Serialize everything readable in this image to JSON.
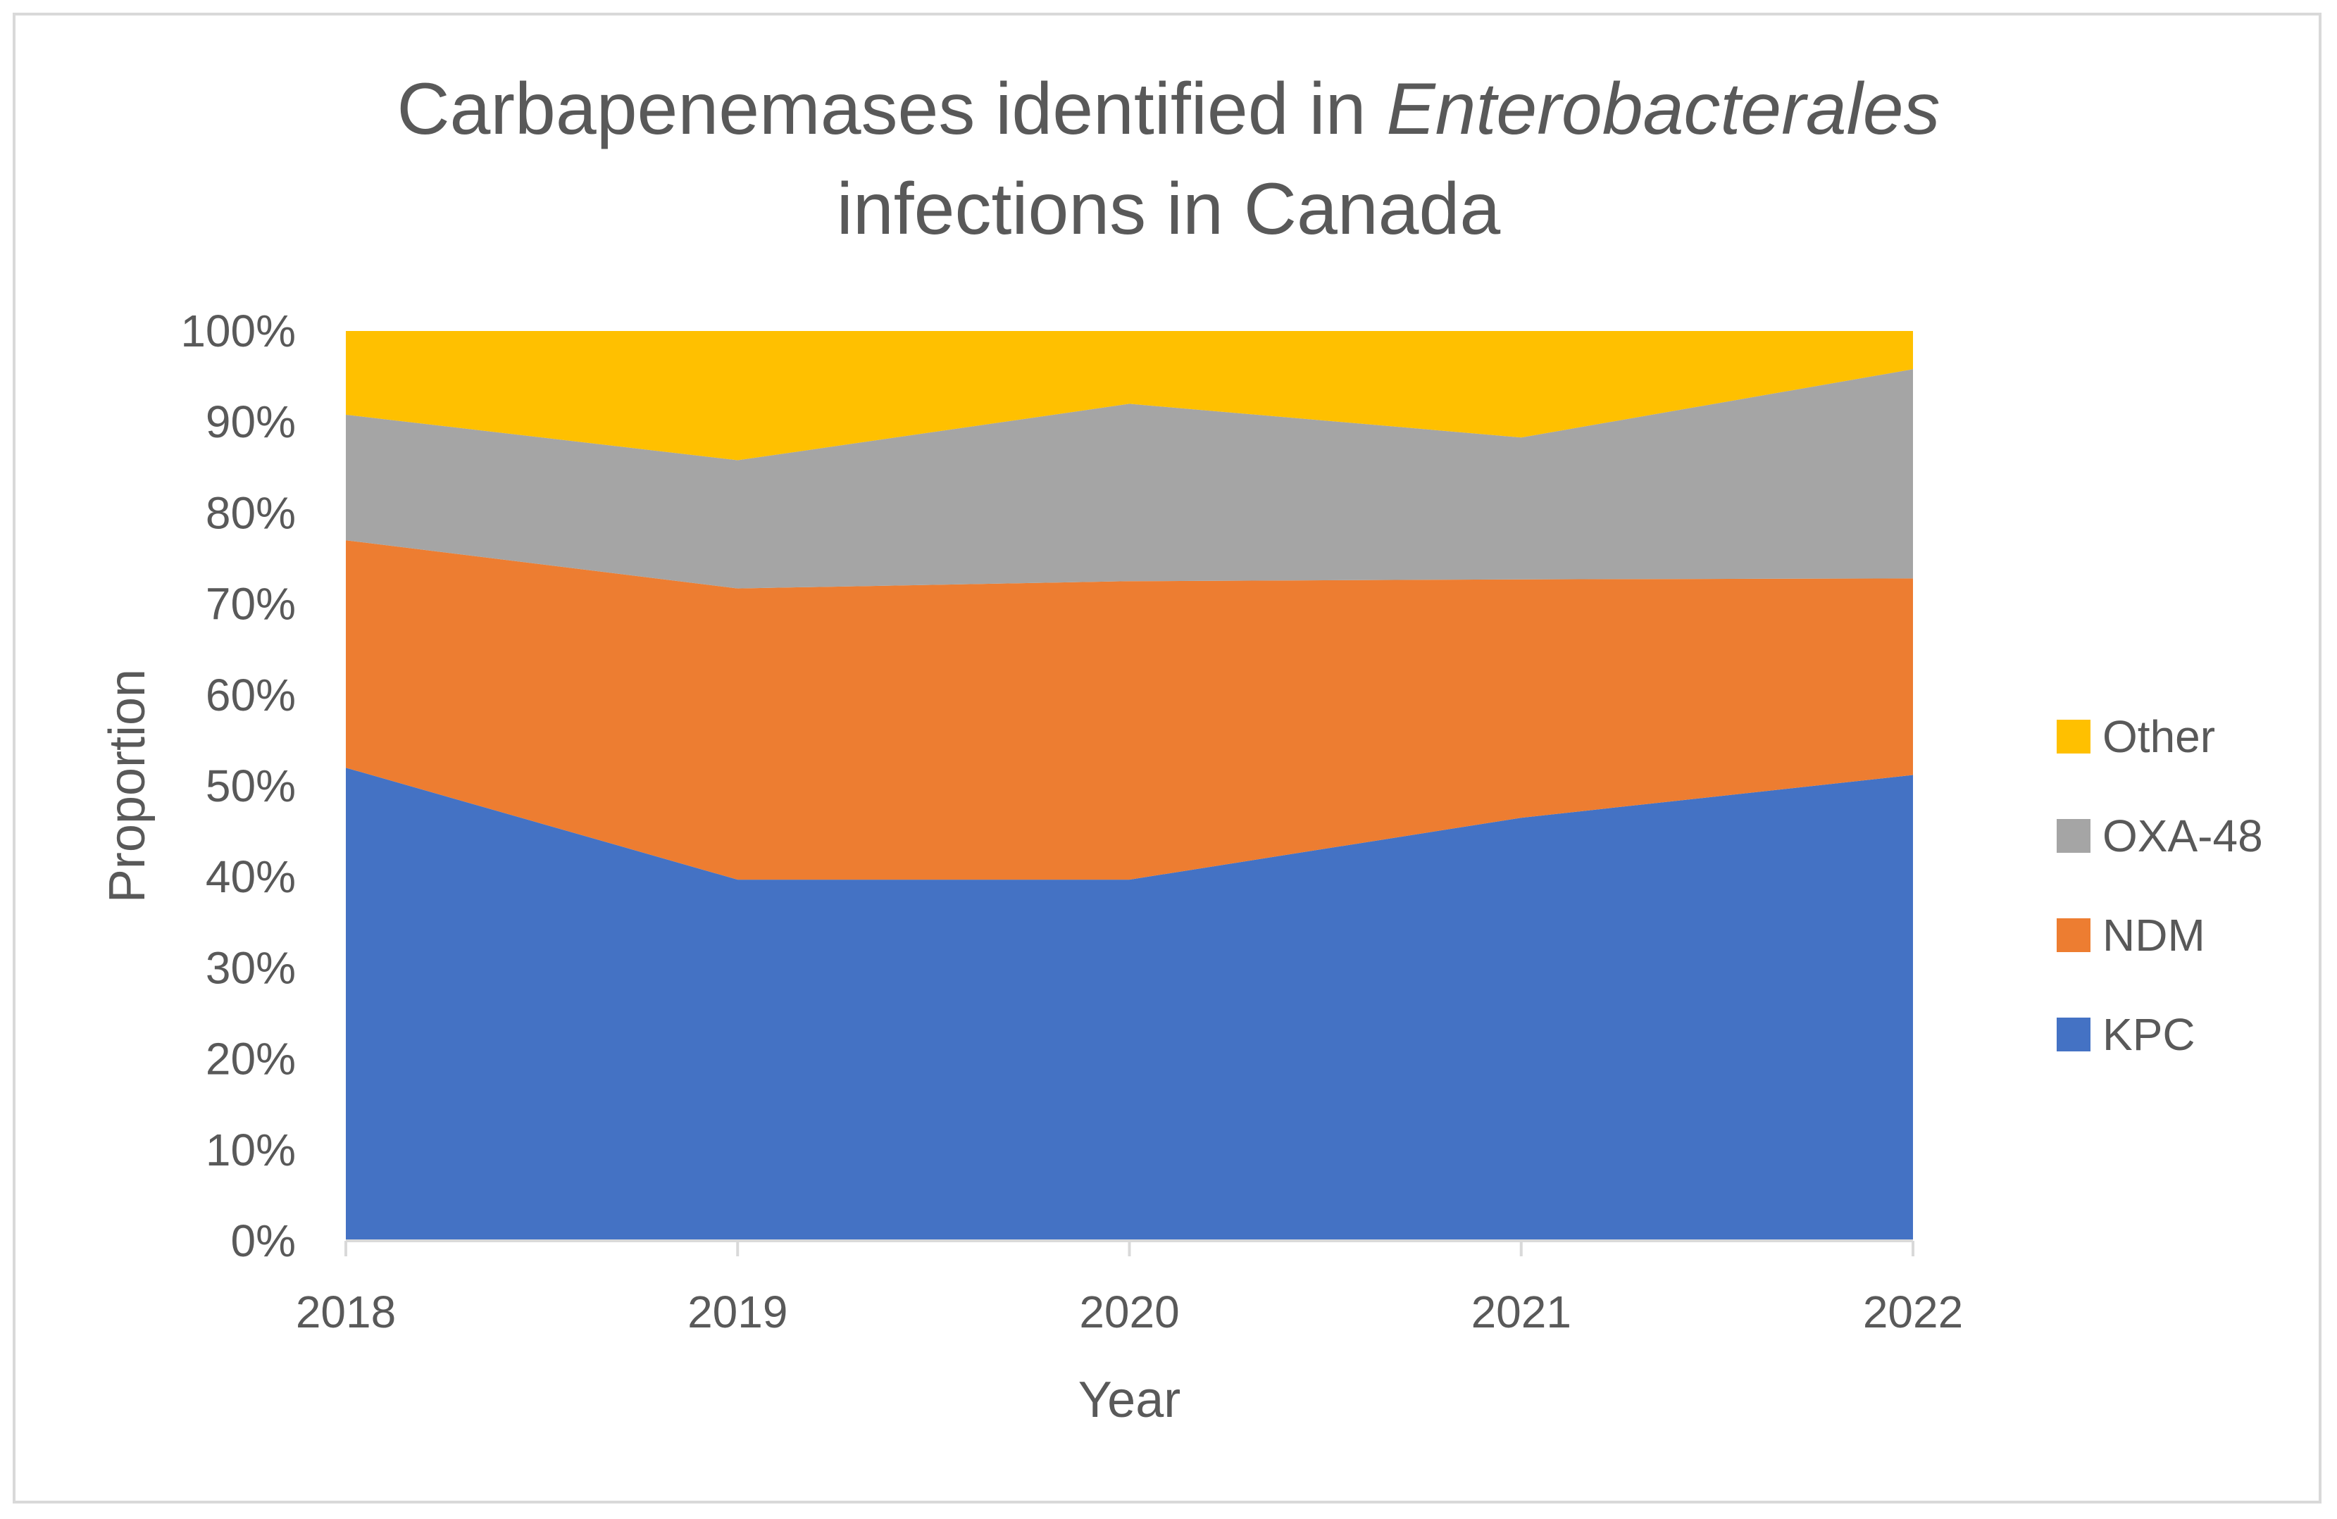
{
  "chart_data": {
    "type": "area",
    "stacked": true,
    "percent": true,
    "title": {
      "line1_prefix": "Carbapenemases identified in ",
      "line1_italic": "Enterobacterales",
      "line2": "infections in Canada"
    },
    "xlabel": "Year",
    "ylabel": "Proportion",
    "categories": [
      "2018",
      "2019",
      "2020",
      "2021",
      "2022"
    ],
    "ylim": [
      0,
      100
    ],
    "y_ticks": [
      "0%",
      "10%",
      "20%",
      "30%",
      "40%",
      "50%",
      "60%",
      "70%",
      "80%",
      "90%",
      "100%"
    ],
    "legend_position": "right",
    "series": [
      {
        "name": "KPC",
        "color": "#4472C4",
        "values": [
          52,
          39.7,
          39.7,
          46.5,
          51.2
        ]
      },
      {
        "name": "NDM",
        "color": "#ED7D31",
        "values": [
          25,
          32,
          32.8,
          26.2,
          21.6
        ]
      },
      {
        "name": "OXA-48",
        "color": "#A5A5A5",
        "values": [
          13.8,
          14.1,
          19.5,
          15.6,
          23
        ]
      },
      {
        "name": "Other",
        "color": "#FFC000",
        "values": [
          9.2,
          14.2,
          8,
          11.7,
          4.2
        ]
      }
    ]
  }
}
